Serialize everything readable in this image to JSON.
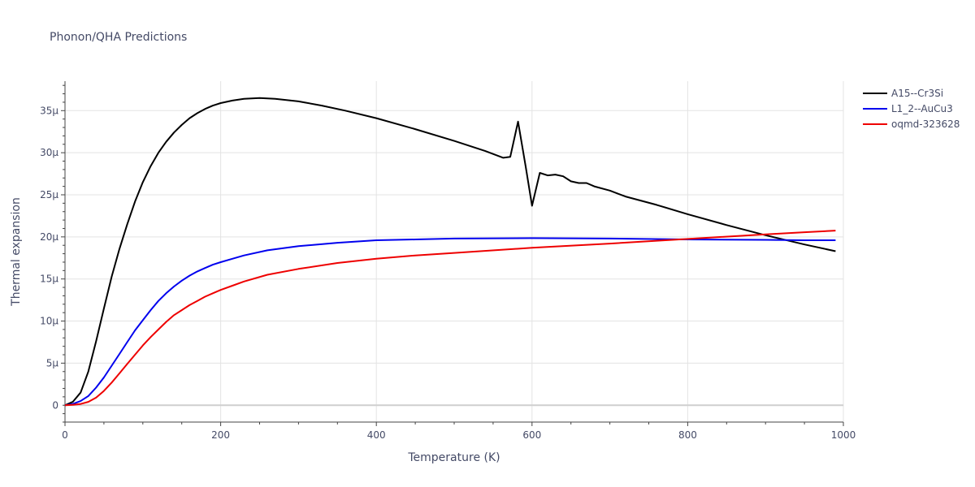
{
  "chart_data": {
    "type": "line",
    "title": "Phonon/QHA Predictions",
    "xlabel": "Temperature (K)",
    "ylabel": "Thermal expansion",
    "xlim": [
      0,
      1000
    ],
    "ylim": [
      -2,
      38.5
    ],
    "grid": true,
    "legend_position": "top-right",
    "x_ticks": [
      0,
      200,
      400,
      600,
      800,
      1000
    ],
    "x_tick_labels": [
      "0",
      "200",
      "400",
      "600",
      "800",
      "1000"
    ],
    "y_ticks": [
      0,
      5,
      10,
      15,
      20,
      25,
      30,
      35
    ],
    "y_tick_labels": [
      "0",
      "5μ",
      "10μ",
      "15μ",
      "20μ",
      "25μ",
      "30μ",
      "35μ"
    ],
    "series": [
      {
        "name": "A15--Cr3Si",
        "color": "#000000",
        "x": [
          0,
          10,
          20,
          30,
          40,
          50,
          60,
          70,
          80,
          90,
          100,
          110,
          120,
          130,
          140,
          150,
          160,
          170,
          180,
          190,
          200,
          215,
          230,
          250,
          270,
          300,
          330,
          360,
          400,
          450,
          500,
          540,
          563,
          572,
          582,
          592,
          600,
          610,
          620,
          630,
          640,
          650,
          660,
          670,
          680,
          700,
          720,
          760,
          800,
          850,
          900,
          950,
          990
        ],
        "y": [
          0,
          0.4,
          1.5,
          4,
          7.6,
          11.5,
          15.3,
          18.6,
          21.5,
          24.2,
          26.5,
          28.4,
          30,
          31.3,
          32.4,
          33.3,
          34.1,
          34.7,
          35.2,
          35.6,
          35.9,
          36.2,
          36.4,
          36.5,
          36.4,
          36.1,
          35.6,
          35,
          34.1,
          32.8,
          31.4,
          30.2,
          29.4,
          29.5,
          33.7,
          28.3,
          23.7,
          27.6,
          27.3,
          27.4,
          27.2,
          26.6,
          26.4,
          26.4,
          26,
          25.5,
          24.8,
          23.8,
          22.7,
          21.4,
          20.2,
          19.1,
          18.3
        ]
      },
      {
        "name": "L1_2--AuCu3",
        "color": "#0000ee",
        "x": [
          0,
          10,
          20,
          30,
          40,
          50,
          60,
          70,
          80,
          90,
          100,
          110,
          120,
          130,
          140,
          150,
          160,
          170,
          180,
          190,
          200,
          215,
          230,
          260,
          300,
          350,
          400,
          450,
          500,
          600,
          700,
          800,
          900,
          950,
          990
        ],
        "y": [
          0,
          0.15,
          0.5,
          1.1,
          2.1,
          3.3,
          4.7,
          6.1,
          7.5,
          8.9,
          10.1,
          11.3,
          12.4,
          13.3,
          14.1,
          14.8,
          15.4,
          15.9,
          16.3,
          16.7,
          17,
          17.4,
          17.8,
          18.4,
          18.9,
          19.3,
          19.6,
          19.7,
          19.8,
          19.85,
          19.8,
          19.7,
          19.65,
          19.6,
          19.6
        ]
      },
      {
        "name": "oqmd-323628",
        "color": "#ee0000",
        "x": [
          0,
          10,
          20,
          30,
          40,
          50,
          60,
          70,
          80,
          90,
          100,
          110,
          120,
          130,
          140,
          150,
          160,
          170,
          180,
          190,
          200,
          215,
          230,
          260,
          300,
          350,
          400,
          450,
          500,
          600,
          700,
          800,
          900,
          950,
          990
        ],
        "y": [
          0,
          0.05,
          0.15,
          0.4,
          0.9,
          1.7,
          2.7,
          3.8,
          4.9,
          6,
          7.1,
          8.1,
          9,
          9.9,
          10.7,
          11.3,
          11.9,
          12.4,
          12.9,
          13.3,
          13.7,
          14.2,
          14.7,
          15.5,
          16.2,
          16.9,
          17.4,
          17.8,
          18.1,
          18.7,
          19.2,
          19.75,
          20.3,
          20.55,
          20.75
        ]
      }
    ]
  }
}
